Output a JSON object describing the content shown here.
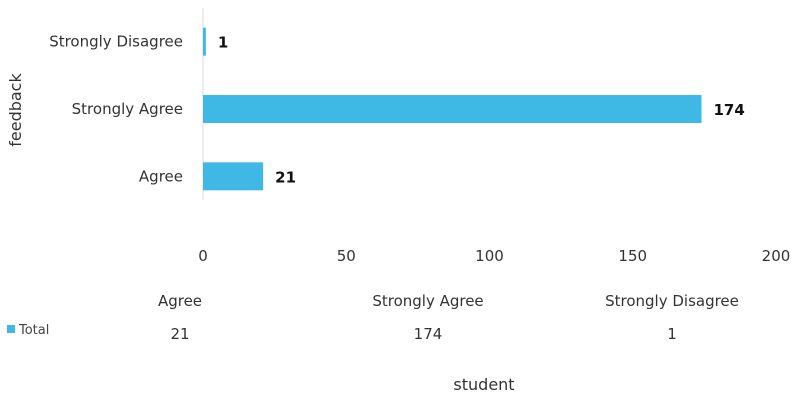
{
  "chart_data": {
    "type": "bar",
    "orientation": "horizontal",
    "categories": [
      "Agree",
      "Strongly Agree",
      "Strongly Disagree"
    ],
    "series": [
      {
        "name": "Total",
        "values": [
          21,
          174,
          1
        ]
      }
    ],
    "xlabel": "student",
    "ylabel": "feedback",
    "xlim": [
      0,
      200
    ],
    "x_ticks": [
      0,
      50,
      100,
      150,
      200
    ],
    "grid": false,
    "legend_placement": "bottom-left data table",
    "colors": {
      "bar": "#3FB8E6"
    }
  }
}
